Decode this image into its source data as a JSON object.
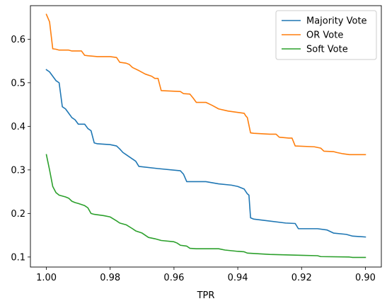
{
  "chart_data": {
    "type": "line",
    "title": "",
    "xlabel": "TPR",
    "ylabel": "",
    "xlim": [
      1.005,
      0.895
    ],
    "ylim": [
      0.077,
      0.677
    ],
    "x_inverted": true,
    "xticks": [
      1.0,
      0.98,
      0.96,
      0.94,
      0.92,
      0.9
    ],
    "xtick_labels": [
      "1.00",
      "0.98",
      "0.96",
      "0.94",
      "0.92",
      "0.90"
    ],
    "yticks": [
      0.1,
      0.2,
      0.3,
      0.4,
      0.5,
      0.6
    ],
    "ytick_labels": [
      "0.1",
      "0.2",
      "0.3",
      "0.4",
      "0.5",
      "0.6"
    ],
    "grid": false,
    "legend_position": "top-right",
    "series": [
      {
        "name": "Majority Vote",
        "color": "#1f77b4",
        "points": [
          [
            1.0,
            0.53
          ],
          [
            0.999,
            0.525
          ],
          [
            0.998,
            0.515
          ],
          [
            0.997,
            0.505
          ],
          [
            0.996,
            0.5
          ],
          [
            0.995,
            0.445
          ],
          [
            0.994,
            0.44
          ],
          [
            0.993,
            0.43
          ],
          [
            0.992,
            0.42
          ],
          [
            0.991,
            0.415
          ],
          [
            0.99,
            0.405
          ],
          [
            0.988,
            0.405
          ],
          [
            0.987,
            0.395
          ],
          [
            0.986,
            0.39
          ],
          [
            0.985,
            0.362
          ],
          [
            0.984,
            0.36
          ],
          [
            0.98,
            0.358
          ],
          [
            0.978,
            0.355
          ],
          [
            0.977,
            0.348
          ],
          [
            0.976,
            0.34
          ],
          [
            0.975,
            0.335
          ],
          [
            0.974,
            0.33
          ],
          [
            0.972,
            0.32
          ],
          [
            0.971,
            0.308
          ],
          [
            0.965,
            0.303
          ],
          [
            0.958,
            0.298
          ],
          [
            0.957,
            0.29
          ],
          [
            0.956,
            0.273
          ],
          [
            0.95,
            0.273
          ],
          [
            0.946,
            0.268
          ],
          [
            0.942,
            0.265
          ],
          [
            0.94,
            0.262
          ],
          [
            0.938,
            0.256
          ],
          [
            0.937,
            0.245
          ],
          [
            0.9365,
            0.242
          ],
          [
            0.936,
            0.19
          ],
          [
            0.935,
            0.187
          ],
          [
            0.925,
            0.178
          ],
          [
            0.922,
            0.177
          ],
          [
            0.921,
            0.165
          ],
          [
            0.915,
            0.165
          ],
          [
            0.912,
            0.162
          ],
          [
            0.91,
            0.155
          ],
          [
            0.906,
            0.152
          ],
          [
            0.904,
            0.148
          ],
          [
            0.9,
            0.146
          ]
        ]
      },
      {
        "name": "OR Vote",
        "color": "#ff7f0e",
        "points": [
          [
            1.0,
            0.657
          ],
          [
            0.999,
            0.64
          ],
          [
            0.998,
            0.578
          ],
          [
            0.997,
            0.577
          ],
          [
            0.996,
            0.575
          ],
          [
            0.993,
            0.575
          ],
          [
            0.992,
            0.573
          ],
          [
            0.989,
            0.573
          ],
          [
            0.988,
            0.563
          ],
          [
            0.987,
            0.562
          ],
          [
            0.984,
            0.56
          ],
          [
            0.98,
            0.56
          ],
          [
            0.978,
            0.558
          ],
          [
            0.977,
            0.547
          ],
          [
            0.975,
            0.545
          ],
          [
            0.974,
            0.542
          ],
          [
            0.973,
            0.535
          ],
          [
            0.971,
            0.528
          ],
          [
            0.969,
            0.52
          ],
          [
            0.967,
            0.515
          ],
          [
            0.966,
            0.51
          ],
          [
            0.965,
            0.51
          ],
          [
            0.964,
            0.482
          ],
          [
            0.958,
            0.48
          ],
          [
            0.957,
            0.475
          ],
          [
            0.955,
            0.474
          ],
          [
            0.954,
            0.465
          ],
          [
            0.953,
            0.455
          ],
          [
            0.95,
            0.455
          ],
          [
            0.948,
            0.448
          ],
          [
            0.946,
            0.44
          ],
          [
            0.943,
            0.435
          ],
          [
            0.94,
            0.432
          ],
          [
            0.938,
            0.43
          ],
          [
            0.9375,
            0.424
          ],
          [
            0.937,
            0.42
          ],
          [
            0.936,
            0.385
          ],
          [
            0.935,
            0.384
          ],
          [
            0.93,
            0.382
          ],
          [
            0.928,
            0.382
          ],
          [
            0.927,
            0.375
          ],
          [
            0.924,
            0.373
          ],
          [
            0.923,
            0.373
          ],
          [
            0.922,
            0.355
          ],
          [
            0.916,
            0.353
          ],
          [
            0.914,
            0.35
          ],
          [
            0.913,
            0.343
          ],
          [
            0.91,
            0.342
          ],
          [
            0.909,
            0.34
          ],
          [
            0.907,
            0.337
          ],
          [
            0.905,
            0.335
          ],
          [
            0.9,
            0.335
          ]
        ]
      },
      {
        "name": "Soft Vote",
        "color": "#2ca02c",
        "points": [
          [
            1.0,
            0.335
          ],
          [
            0.999,
            0.3
          ],
          [
            0.998,
            0.262
          ],
          [
            0.997,
            0.248
          ],
          [
            0.996,
            0.242
          ],
          [
            0.994,
            0.238
          ],
          [
            0.993,
            0.235
          ],
          [
            0.992,
            0.228
          ],
          [
            0.991,
            0.225
          ],
          [
            0.99,
            0.223
          ],
          [
            0.988,
            0.218
          ],
          [
            0.987,
            0.213
          ],
          [
            0.986,
            0.2
          ],
          [
            0.985,
            0.198
          ],
          [
            0.982,
            0.195
          ],
          [
            0.98,
            0.192
          ],
          [
            0.978,
            0.183
          ],
          [
            0.977,
            0.178
          ],
          [
            0.975,
            0.174
          ],
          [
            0.973,
            0.165
          ],
          [
            0.972,
            0.16
          ],
          [
            0.97,
            0.155
          ],
          [
            0.968,
            0.145
          ],
          [
            0.966,
            0.142
          ],
          [
            0.964,
            0.138
          ],
          [
            0.96,
            0.135
          ],
          [
            0.959,
            0.132
          ],
          [
            0.958,
            0.127
          ],
          [
            0.956,
            0.125
          ],
          [
            0.955,
            0.12
          ],
          [
            0.953,
            0.119
          ],
          [
            0.946,
            0.119
          ],
          [
            0.944,
            0.116
          ],
          [
            0.94,
            0.113
          ],
          [
            0.938,
            0.112
          ],
          [
            0.937,
            0.109
          ],
          [
            0.93,
            0.106
          ],
          [
            0.92,
            0.104
          ],
          [
            0.915,
            0.103
          ],
          [
            0.914,
            0.101
          ],
          [
            0.905,
            0.1
          ],
          [
            0.904,
            0.099
          ],
          [
            0.9,
            0.099
          ]
        ]
      }
    ]
  }
}
